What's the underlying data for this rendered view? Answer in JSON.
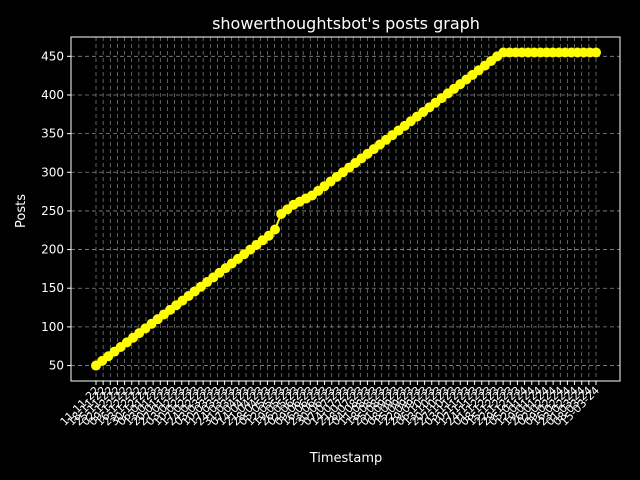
{
  "chart_data": {
    "type": "line",
    "title": "showerthoughtsbot's posts graph",
    "xlabel": "Timestamp",
    "ylabel": "Posts",
    "ylim": [
      30,
      475
    ],
    "yticks": [
      50,
      100,
      150,
      200,
      250,
      300,
      350,
      400,
      450
    ],
    "grid": true,
    "colors": {
      "background": "#000000",
      "line": "#ffff00",
      "grid": "#888888",
      "axis": "#ffffff"
    },
    "x_tick_labels": [
      "11-11-22",
      "18-11-22",
      "25-11-22",
      "02-12-22",
      "09-12-22",
      "16-12-22",
      "23-12-22",
      "30-12-22",
      "06-01-23",
      "13-01-23",
      "20-01-23",
      "27-01-23",
      "03-02-23",
      "10-02-23",
      "17-02-23",
      "24-02-23",
      "03-03-23",
      "10-03-23",
      "17-03-23",
      "24-03-23",
      "31-03-23",
      "07-04-23",
      "14-04-23",
      "21-04-23",
      "28-04-23",
      "05-05-23",
      "12-05-23",
      "19-05-23",
      "26-05-23",
      "02-06-23",
      "09-06-23",
      "16-06-23",
      "23-06-23",
      "30-06-23",
      "07-07-23",
      "14-07-23",
      "21-07-23",
      "28-07-23",
      "04-08-23",
      "11-08-23",
      "18-08-23",
      "25-08-23",
      "01-09-23",
      "08-09-23",
      "15-09-23",
      "22-09-23",
      "29-09-23",
      "06-10-23",
      "13-10-23",
      "20-10-23",
      "27-10-23",
      "03-11-23",
      "10-11-23",
      "17-11-23",
      "24-11-23",
      "01-12-23",
      "08-12-23",
      "15-12-23",
      "22-12-23",
      "29-12-23",
      "05-01-24",
      "12-01-24",
      "19-01-24",
      "26-01-24",
      "02-02-24",
      "09-02-24",
      "16-02-24",
      "23-02-24",
      "01-03-24",
      "08-03-24",
      "15-03-24"
    ],
    "series": [
      {
        "values": [
          50,
          56,
          62,
          68,
          74,
          80,
          86,
          92,
          98,
          104,
          110,
          116,
          122,
          128,
          134,
          140,
          146,
          152,
          158,
          164,
          170,
          176,
          182,
          188,
          194,
          200,
          206,
          212,
          218,
          226,
          246,
          252,
          258,
          262,
          266,
          270,
          276,
          282,
          288,
          294,
          300,
          306,
          312,
          318,
          324,
          330,
          336,
          342,
          348,
          354,
          360,
          366,
          372,
          378,
          384,
          390,
          396,
          402,
          408,
          414,
          420,
          426,
          432,
          438,
          444,
          450,
          455,
          455,
          455,
          455,
          455,
          455,
          455,
          455,
          455,
          455,
          455,
          455,
          455,
          455,
          455,
          455
        ]
      }
    ]
  }
}
